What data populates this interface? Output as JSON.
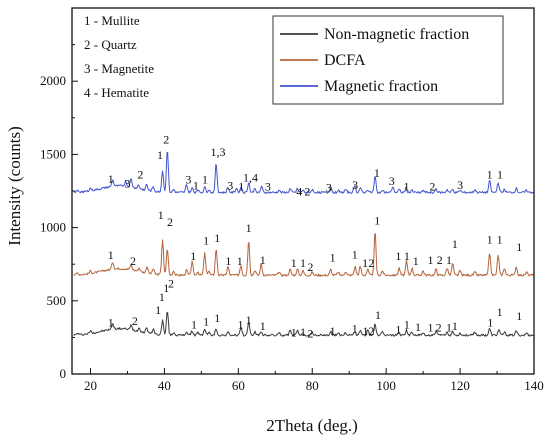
{
  "chart_data": {
    "type": "line",
    "xlabel": "2Theta (deg.)",
    "ylabel": "Intensity (counts)",
    "xlim": [
      15,
      140
    ],
    "ylim": [
      0,
      2500
    ],
    "x_ticks": [
      20,
      40,
      60,
      80,
      100,
      120,
      140
    ],
    "y_ticks": [
      0,
      500,
      1000,
      1500,
      2000
    ],
    "phase_key": [
      "1 - Mullite",
      "2 - Quartz",
      "3 - Magnetite",
      "4 - Hematite"
    ],
    "legend_position": "top-right",
    "series": [
      {
        "name": "Non-magnetic fraction",
        "color": "#3a3a3a",
        "baseline": 265,
        "peaks": [
          [
            16.5,
            10
          ],
          [
            20,
            18
          ],
          [
            26,
            40
          ],
          [
            31,
            30
          ],
          [
            33.2,
            25
          ],
          [
            35.2,
            40
          ],
          [
            37,
            35
          ],
          [
            39.5,
            100
          ],
          [
            40.8,
            170
          ],
          [
            42.5,
            20
          ],
          [
            46,
            25
          ],
          [
            47.5,
            30
          ],
          [
            49,
            20
          ],
          [
            50.9,
            45
          ],
          [
            52,
            20
          ],
          [
            54,
            45
          ],
          [
            57.2,
            20
          ],
          [
            60.7,
            50
          ],
          [
            62.8,
            95
          ],
          [
            64.5,
            25
          ],
          [
            66.2,
            25
          ],
          [
            71,
            15
          ],
          [
            74,
            30
          ],
          [
            76,
            30
          ],
          [
            77.5,
            15
          ],
          [
            80,
            20
          ],
          [
            85,
            25
          ],
          [
            87,
            15
          ],
          [
            89,
            20
          ],
          [
            91.5,
            25
          ],
          [
            93,
            30
          ],
          [
            95,
            35
          ],
          [
            97,
            80
          ],
          [
            99,
            20
          ],
          [
            103.4,
            20
          ],
          [
            105.5,
            35
          ],
          [
            107,
            20
          ],
          [
            110,
            15
          ],
          [
            113.5,
            25
          ],
          [
            116.5,
            20
          ],
          [
            118,
            25
          ],
          [
            120,
            15
          ],
          [
            124,
            20
          ],
          [
            128,
            45
          ],
          [
            130.5,
            40
          ],
          [
            132,
            20
          ],
          [
            135.2,
            30
          ],
          [
            138,
            15
          ]
        ]
      },
      {
        "name": "DCFA",
        "color": "#b5643a",
        "baseline": 675,
        "peaks": [
          [
            16.5,
            15
          ],
          [
            20,
            18
          ],
          [
            26,
            50
          ],
          [
            31,
            35
          ],
          [
            33.2,
            25
          ],
          [
            35.3,
            45
          ],
          [
            37,
            35
          ],
          [
            39.5,
            240
          ],
          [
            40.8,
            180
          ],
          [
            42.5,
            30
          ],
          [
            46,
            35
          ],
          [
            47.5,
            90
          ],
          [
            49,
            25
          ],
          [
            50.9,
            150
          ],
          [
            52,
            30
          ],
          [
            54,
            180
          ],
          [
            57.2,
            60
          ],
          [
            60.7,
            70
          ],
          [
            62.8,
            240
          ],
          [
            64.5,
            35
          ],
          [
            66.2,
            80
          ],
          [
            71,
            20
          ],
          [
            74,
            40
          ],
          [
            76,
            40
          ],
          [
            77.5,
            30
          ],
          [
            80,
            20
          ],
          [
            85,
            40
          ],
          [
            87,
            20
          ],
          [
            89,
            25
          ],
          [
            91.6,
            60
          ],
          [
            93,
            60
          ],
          [
            95,
            40
          ],
          [
            97,
            300
          ],
          [
            99,
            30
          ],
          [
            103.5,
            50
          ],
          [
            105.5,
            100
          ],
          [
            107,
            50
          ],
          [
            110,
            30
          ],
          [
            113.5,
            40
          ],
          [
            116.5,
            50
          ],
          [
            118,
            80
          ],
          [
            120,
            30
          ],
          [
            124,
            20
          ],
          [
            128,
            150
          ],
          [
            130.3,
            140
          ],
          [
            132,
            50
          ],
          [
            135.2,
            60
          ],
          [
            138,
            20
          ]
        ]
      },
      {
        "name": "Magnetic fraction",
        "color": "#4455cc",
        "baseline": 1240,
        "peaks": [
          [
            16.5,
            10
          ],
          [
            20,
            18
          ],
          [
            26,
            45
          ],
          [
            29.5,
            35
          ],
          [
            31,
            55
          ],
          [
            33,
            25
          ],
          [
            35.2,
            40
          ],
          [
            37,
            30
          ],
          [
            39.5,
            150
          ],
          [
            40.8,
            300
          ],
          [
            42.5,
            20
          ],
          [
            46,
            55
          ],
          [
            47.5,
            30
          ],
          [
            49,
            20
          ],
          [
            50.9,
            40
          ],
          [
            52,
            20
          ],
          [
            54,
            200
          ],
          [
            57.2,
            35
          ],
          [
            59.5,
            30
          ],
          [
            60.7,
            40
          ],
          [
            62.8,
            70
          ],
          [
            64.5,
            30
          ],
          [
            66.3,
            40
          ],
          [
            71,
            15
          ],
          [
            74,
            25
          ],
          [
            76,
            25
          ],
          [
            77.5,
            15
          ],
          [
            80,
            20
          ],
          [
            85,
            40
          ],
          [
            87,
            15
          ],
          [
            89,
            20
          ],
          [
            91.5,
            50
          ],
          [
            93,
            30
          ],
          [
            95,
            20
          ],
          [
            97,
            110
          ],
          [
            99,
            20
          ],
          [
            101.8,
            40
          ],
          [
            103.5,
            20
          ],
          [
            105.4,
            30
          ],
          [
            107,
            20
          ],
          [
            110,
            15
          ],
          [
            113.5,
            25
          ],
          [
            116.5,
            20
          ],
          [
            118,
            20
          ],
          [
            120,
            15
          ],
          [
            124,
            20
          ],
          [
            128,
            80
          ],
          [
            130.3,
            70
          ],
          [
            132,
            20
          ],
          [
            135.2,
            30
          ],
          [
            138,
            15
          ]
        ]
      }
    ],
    "peak_labels": [
      {
        "text": "1",
        "x": 25.5,
        "y": 1305
      },
      {
        "text": "3",
        "x": 30,
        "y": 1275
      },
      {
        "text": "2",
        "x": 33.5,
        "y": 1335
      },
      {
        "text": "1",
        "x": 38.8,
        "y": 1470
      },
      {
        "text": "2",
        "x": 40.5,
        "y": 1575
      },
      {
        "text": "3",
        "x": 46.5,
        "y": 1300
      },
      {
        "text": "1",
        "x": 48.5,
        "y": 1260
      },
      {
        "text": "1",
        "x": 51,
        "y": 1300
      },
      {
        "text": "1,3",
        "x": 54.5,
        "y": 1490
      },
      {
        "text": "3",
        "x": 57.8,
        "y": 1260
      },
      {
        "text": "1",
        "x": 60.8,
        "y": 1255
      },
      {
        "text": "1,4",
        "x": 63.3,
        "y": 1315
      },
      {
        "text": "3",
        "x": 68,
        "y": 1255
      },
      {
        "text": "4",
        "x": 76.5,
        "y": 1220
      },
      {
        "text": "2",
        "x": 78.7,
        "y": 1220
      },
      {
        "text": "3",
        "x": 84.5,
        "y": 1245
      },
      {
        "text": "3",
        "x": 91.6,
        "y": 1265
      },
      {
        "text": "1",
        "x": 97.5,
        "y": 1345
      },
      {
        "text": "3",
        "x": 101.5,
        "y": 1290
      },
      {
        "text": "1",
        "x": 105.5,
        "y": 1255
      },
      {
        "text": "2",
        "x": 112.5,
        "y": 1255
      },
      {
        "text": "3",
        "x": 120,
        "y": 1265
      },
      {
        "text": "1",
        "x": 128,
        "y": 1335
      },
      {
        "text": "1",
        "x": 130.8,
        "y": 1335
      },
      {
        "text": "1",
        "x": 39,
        "y": 1060
      },
      {
        "text": "2",
        "x": 41.5,
        "y": 1010
      },
      {
        "text": "1",
        "x": 25.5,
        "y": 785
      },
      {
        "text": "2",
        "x": 31.5,
        "y": 745
      },
      {
        "text": "1",
        "x": 47.8,
        "y": 780
      },
      {
        "text": "1",
        "x": 51.3,
        "y": 885
      },
      {
        "text": "1",
        "x": 54.3,
        "y": 900
      },
      {
        "text": "1",
        "x": 57.3,
        "y": 745
      },
      {
        "text": "1",
        "x": 60.4,
        "y": 745
      },
      {
        "text": "1",
        "x": 62.8,
        "y": 970
      },
      {
        "text": "1",
        "x": 66.6,
        "y": 750
      },
      {
        "text": "1",
        "x": 75,
        "y": 730
      },
      {
        "text": "1",
        "x": 77.5,
        "y": 730
      },
      {
        "text": "2",
        "x": 79.5,
        "y": 705
      },
      {
        "text": "1",
        "x": 85.5,
        "y": 770
      },
      {
        "text": "1",
        "x": 91.5,
        "y": 790
      },
      {
        "text": "1",
        "x": 94.3,
        "y": 730
      },
      {
        "text": "2",
        "x": 96,
        "y": 730
      },
      {
        "text": "1",
        "x": 97.6,
        "y": 1020
      },
      {
        "text": "1",
        "x": 103.3,
        "y": 780
      },
      {
        "text": "1",
        "x": 105.6,
        "y": 780
      },
      {
        "text": "1",
        "x": 108,
        "y": 745
      },
      {
        "text": "1",
        "x": 112,
        "y": 750
      },
      {
        "text": "2",
        "x": 114.5,
        "y": 750
      },
      {
        "text": "1",
        "x": 117,
        "y": 750
      },
      {
        "text": "1",
        "x": 118.6,
        "y": 860
      },
      {
        "text": "1",
        "x": 128,
        "y": 890
      },
      {
        "text": "1",
        "x": 130.7,
        "y": 890
      },
      {
        "text": "1",
        "x": 136,
        "y": 840
      },
      {
        "text": "1",
        "x": 39.3,
        "y": 500
      },
      {
        "text": "1",
        "x": 40.5,
        "y": 560
      },
      {
        "text": "2",
        "x": 41.8,
        "y": 590
      },
      {
        "text": "1",
        "x": 38.3,
        "y": 410
      },
      {
        "text": "1",
        "x": 25.5,
        "y": 325
      },
      {
        "text": "2",
        "x": 32,
        "y": 335
      },
      {
        "text": "1",
        "x": 48,
        "y": 310
      },
      {
        "text": "1",
        "x": 51.3,
        "y": 330
      },
      {
        "text": "1",
        "x": 54.3,
        "y": 355
      },
      {
        "text": "1",
        "x": 60.6,
        "y": 310
      },
      {
        "text": "1",
        "x": 62.8,
        "y": 340
      },
      {
        "text": "1",
        "x": 66.6,
        "y": 300
      },
      {
        "text": "1",
        "x": 75,
        "y": 255
      },
      {
        "text": "1",
        "x": 77.5,
        "y": 260
      },
      {
        "text": "2",
        "x": 79.5,
        "y": 250
      },
      {
        "text": "1",
        "x": 85.5,
        "y": 265
      },
      {
        "text": "1",
        "x": 91.5,
        "y": 285
      },
      {
        "text": "1",
        "x": 94.4,
        "y": 265
      },
      {
        "text": "2",
        "x": 96,
        "y": 265
      },
      {
        "text": "1",
        "x": 97.8,
        "y": 375
      },
      {
        "text": "1",
        "x": 103.3,
        "y": 275
      },
      {
        "text": "1",
        "x": 105.6,
        "y": 310
      },
      {
        "text": "1",
        "x": 108.6,
        "y": 295
      },
      {
        "text": "1",
        "x": 112,
        "y": 290
      },
      {
        "text": "2",
        "x": 114.2,
        "y": 290
      },
      {
        "text": "1",
        "x": 117,
        "y": 290
      },
      {
        "text": "1",
        "x": 118.6,
        "y": 300
      },
      {
        "text": "1",
        "x": 128.2,
        "y": 325
      },
      {
        "text": "1",
        "x": 130.7,
        "y": 395
      },
      {
        "text": "1",
        "x": 136,
        "y": 370
      }
    ]
  }
}
